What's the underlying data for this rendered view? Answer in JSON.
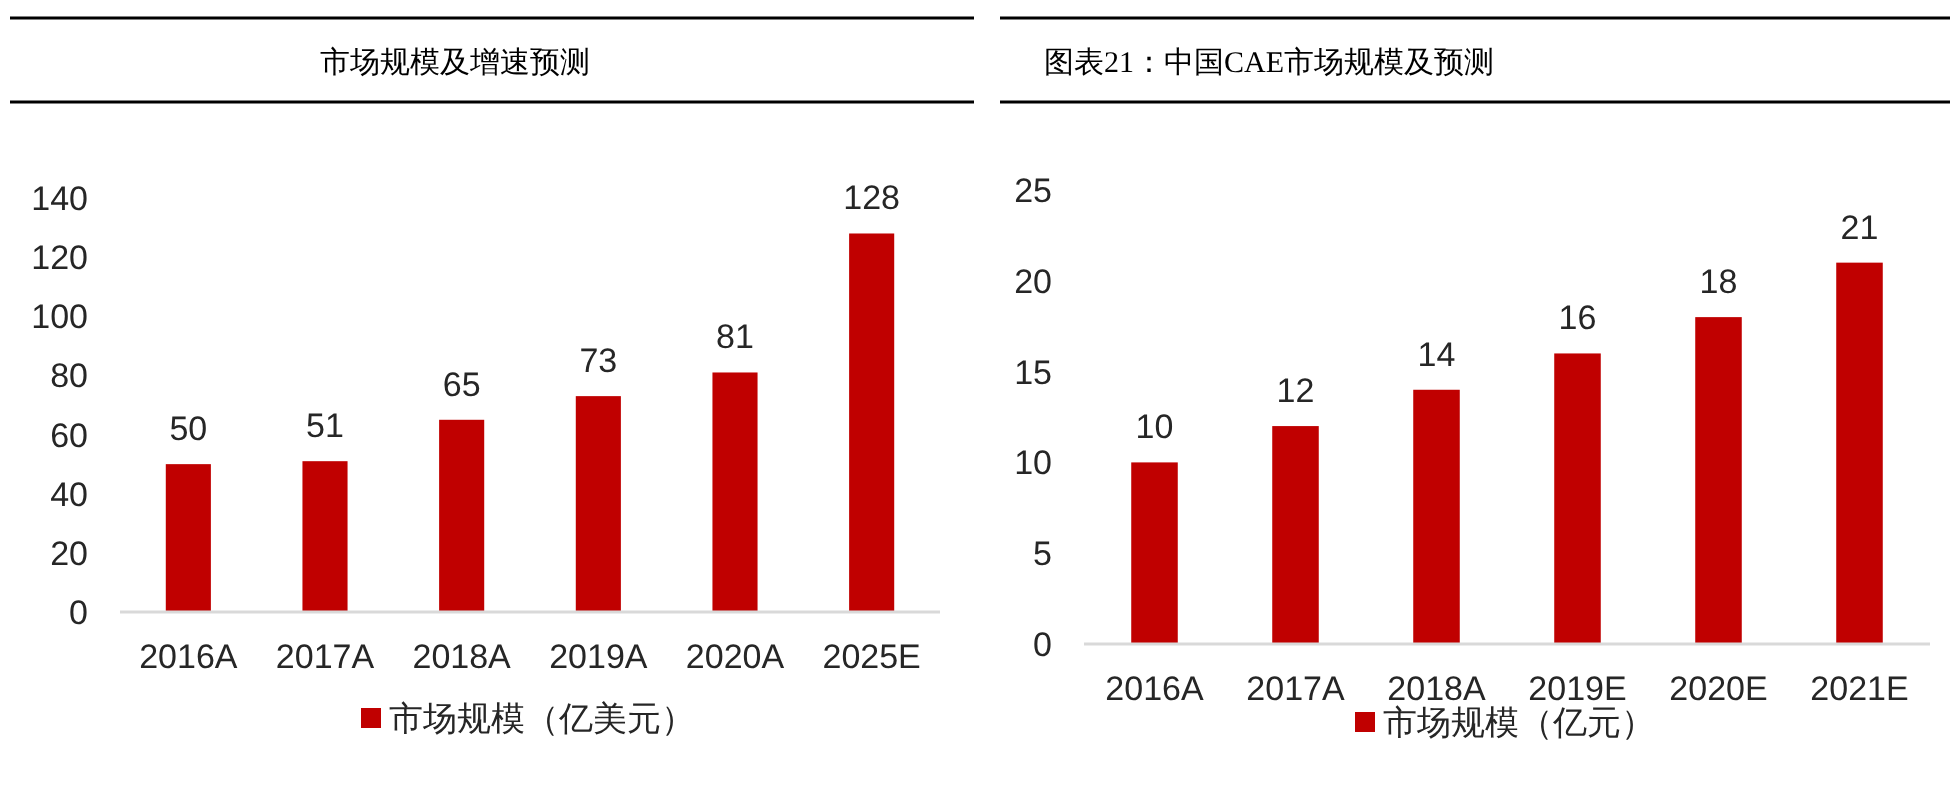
{
  "chart_data": [
    {
      "type": "bar",
      "title": "市场规模及增速预测",
      "categories": [
        "2016A",
        "2017A",
        "2018A",
        "2019A",
        "2020A",
        "2025E"
      ],
      "series": [
        {
          "name": "市场规模（亿美元）",
          "color": "#c00000",
          "values": [
            50,
            51,
            65,
            73,
            81,
            128
          ]
        }
      ],
      "ylim": [
        0,
        140
      ],
      "yticks": [
        0,
        20,
        40,
        60,
        80,
        100,
        120,
        140
      ],
      "data_labels": true,
      "legend": "bottom",
      "grid": false
    },
    {
      "type": "bar",
      "title": "图表21：中国CAE市场规模及预测",
      "categories": [
        "2016A",
        "2017A",
        "2018A",
        "2019E",
        "2020E",
        "2021E"
      ],
      "series": [
        {
          "name": "市场规模（亿元）",
          "color": "#c00000",
          "values": [
            10,
            12,
            14,
            16,
            18,
            21
          ]
        }
      ],
      "ylim": [
        0,
        25
      ],
      "yticks": [
        0,
        5,
        10,
        15,
        20,
        25
      ],
      "data_labels": true,
      "legend": "bottom",
      "grid": false
    }
  ]
}
